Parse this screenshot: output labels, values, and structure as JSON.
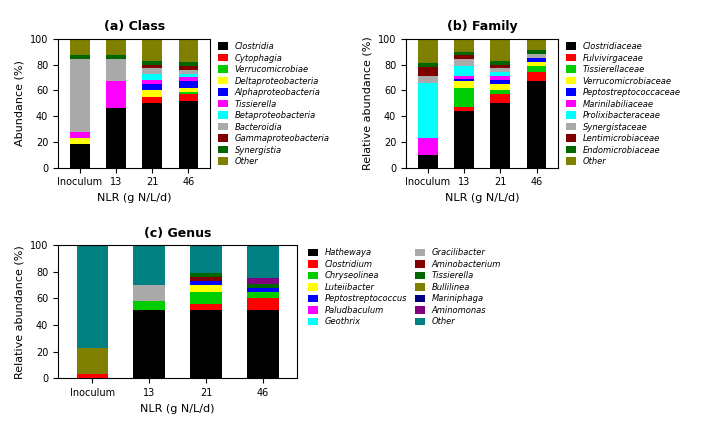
{
  "chart_data": [
    {
      "type": "bar",
      "stacked": true,
      "title": "(a) Class",
      "xlabel": "NLR (g N/L/d)",
      "ylabel": "Abundance (%)",
      "categories": [
        "Inoculum",
        "13",
        "21",
        "46"
      ],
      "series": [
        {
          "name": "Clostridia",
          "color": "#000000",
          "values": [
            18,
            46,
            50,
            52
          ]
        },
        {
          "name": "Cytophagia",
          "color": "#ff0000",
          "values": [
            0,
            0,
            5,
            5
          ]
        },
        {
          "name": "Verrucomicrobiae",
          "color": "#00cc00",
          "values": [
            0,
            0,
            0,
            2
          ]
        },
        {
          "name": "Deltaproteobacteria",
          "color": "#ffff00",
          "values": [
            5,
            0,
            5,
            3
          ]
        },
        {
          "name": "Alphaproteobacteria",
          "color": "#0000ff",
          "values": [
            0,
            0,
            5,
            5
          ]
        },
        {
          "name": "Tissierella",
          "color": "#ff00ff",
          "values": [
            5,
            21,
            3,
            3
          ]
        },
        {
          "name": "Betaproteobacteria",
          "color": "#00ffff",
          "values": [
            0,
            0,
            5,
            3
          ]
        },
        {
          "name": "Bacteroidia",
          "color": "#aaaaaa",
          "values": [
            56,
            17,
            4,
            3
          ]
        },
        {
          "name": "Gammaproteobacteria",
          "color": "#800000",
          "values": [
            0,
            0,
            3,
            3
          ]
        },
        {
          "name": "Synergistia",
          "color": "#006600",
          "values": [
            3,
            3,
            3,
            3
          ]
        },
        {
          "name": "Other",
          "color": "#808000",
          "values": [
            13,
            13,
            17,
            18
          ]
        }
      ],
      "ylim": [
        0,
        100
      ],
      "yticks": [
        0,
        20,
        40,
        60,
        80,
        100
      ],
      "legend": "upper left"
    },
    {
      "type": "bar",
      "stacked": true,
      "title": "(b) Family",
      "xlabel": "NLR (g N/L/d)",
      "ylabel": "Relative abundance (%)",
      "categories": [
        "Inoculum",
        "13",
        "21",
        "46"
      ],
      "series": [
        {
          "name": "Clostridiaceae",
          "color": "#000000",
          "values": [
            10,
            44,
            50,
            67
          ]
        },
        {
          "name": "Fulvivirgaceae",
          "color": "#ff0000",
          "values": [
            0,
            3,
            7,
            7
          ]
        },
        {
          "name": "Tissierellaceae",
          "color": "#00cc00",
          "values": [
            0,
            15,
            3,
            5
          ]
        },
        {
          "name": "Verrucomicrobiaceae",
          "color": "#ffff00",
          "values": [
            0,
            5,
            5,
            3
          ]
        },
        {
          "name": "Peptostreptococcaceae",
          "color": "#0000ff",
          "values": [
            0,
            2,
            3,
            3
          ]
        },
        {
          "name": "Marinilabiliaceae",
          "color": "#ff00ff",
          "values": [
            13,
            2,
            3,
            0
          ]
        },
        {
          "name": "Prolixibacteraceae",
          "color": "#00ffff",
          "values": [
            43,
            8,
            3,
            0
          ]
        },
        {
          "name": "Synergistaceae",
          "color": "#aaaaaa",
          "values": [
            5,
            5,
            3,
            3
          ]
        },
        {
          "name": "Lentimicrobiaceae",
          "color": "#800000",
          "values": [
            7,
            3,
            3,
            0
          ]
        },
        {
          "name": "Endomicrobiaceae",
          "color": "#006600",
          "values": [
            3,
            3,
            3,
            3
          ]
        },
        {
          "name": "Other",
          "color": "#808000",
          "values": [
            19,
            10,
            17,
            9
          ]
        }
      ],
      "ylim": [
        0,
        100
      ],
      "yticks": [
        0,
        20,
        40,
        60,
        80,
        100
      ],
      "legend": "upper left"
    },
    {
      "type": "bar",
      "stacked": true,
      "title": "(c) Genus",
      "xlabel": "NLR (g N/L/d)",
      "ylabel": "Relative abundance (%)",
      "categories": [
        "Inoculum",
        "13",
        "21",
        "46"
      ],
      "series": [
        {
          "name": "Hathewaya",
          "color": "#000000",
          "values": [
            0,
            51,
            51,
            51
          ]
        },
        {
          "name": "Clostridium",
          "color": "#ff0000",
          "values": [
            3,
            0,
            5,
            9
          ]
        },
        {
          "name": "Chryseolinea",
          "color": "#00cc00",
          "values": [
            0,
            7,
            9,
            5
          ]
        },
        {
          "name": "Luteiibacter",
          "color": "#ffff00",
          "values": [
            0,
            0,
            5,
            0
          ]
        },
        {
          "name": "Peptostreptococcus",
          "color": "#0000ff",
          "values": [
            0,
            0,
            3,
            3
          ]
        },
        {
          "name": "Paludbaculum",
          "color": "#ff00ff",
          "values": [
            0,
            0,
            0,
            0
          ]
        },
        {
          "name": "Geothrix",
          "color": "#00ffff",
          "values": [
            0,
            0,
            0,
            0
          ]
        },
        {
          "name": "Gracilibacter",
          "color": "#aaaaaa",
          "values": [
            0,
            12,
            0,
            0
          ]
        },
        {
          "name": "Aminobacterium",
          "color": "#800000",
          "values": [
            0,
            0,
            3,
            0
          ]
        },
        {
          "name": "Tissierella",
          "color": "#006600",
          "values": [
            0,
            0,
            3,
            3
          ]
        },
        {
          "name": "Bullilinea",
          "color": "#808000",
          "values": [
            20,
            0,
            0,
            0
          ]
        },
        {
          "name": "Mariniphaga",
          "color": "#000080",
          "values": [
            0,
            0,
            0,
            0
          ]
        },
        {
          "name": "Aminomonas",
          "color": "#800080",
          "values": [
            0,
            0,
            0,
            4
          ]
        },
        {
          "name": "Other",
          "color": "#008080",
          "values": [
            77,
            30,
            21,
            25
          ]
        }
      ],
      "ylim": [
        0,
        100
      ],
      "yticks": [
        0,
        20,
        40,
        60,
        80,
        100
      ],
      "legend": "upper left"
    }
  ]
}
